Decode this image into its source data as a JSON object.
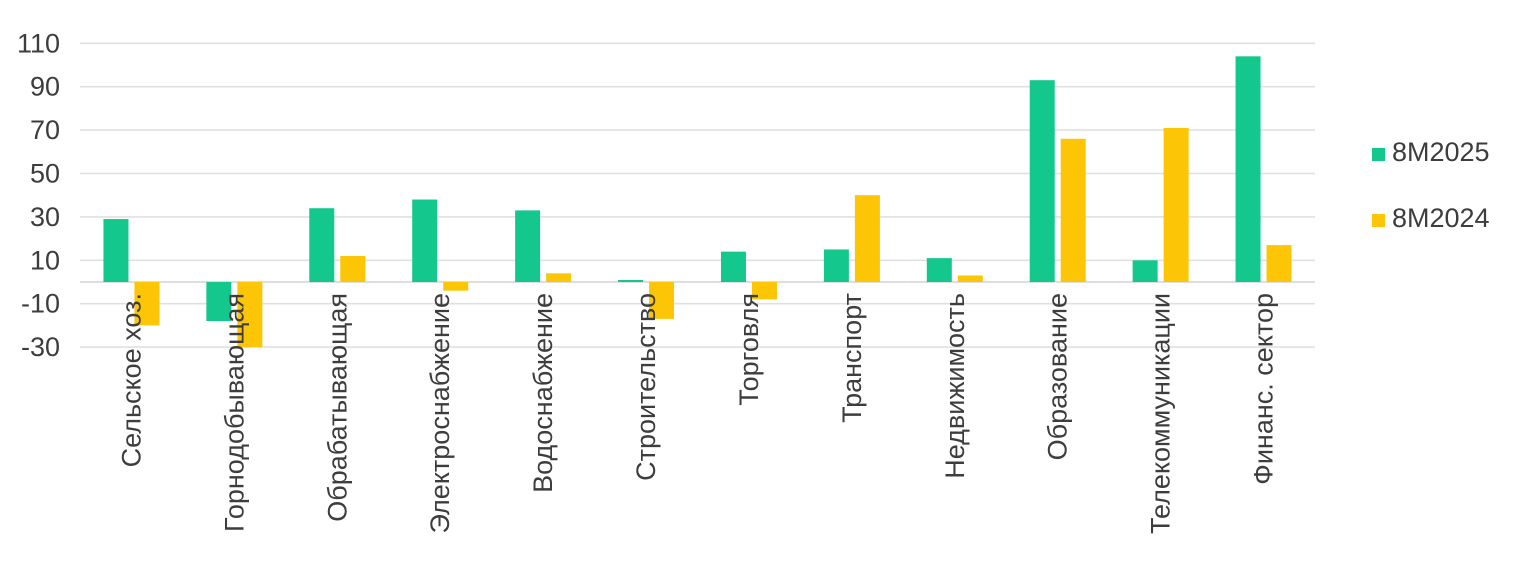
{
  "chart_data": {
    "type": "bar",
    "title": "",
    "xlabel": "",
    "ylabel": "",
    "categories": [
      "Сельское хоз.",
      "Горнодобывающая",
      "Обрабатывающая",
      "Электроснабжение",
      "Водоснабжение",
      "Строительство",
      "Торговля",
      "Транспорт",
      "Недвижимость",
      "Образование",
      "Телекоммуникации",
      "Финанс. сектор"
    ],
    "series": [
      {
        "name": "8M2025",
        "color": "#14C78C",
        "values": [
          29,
          -18,
          34,
          38,
          33,
          0,
          14,
          15,
          11,
          93,
          10,
          104
        ]
      },
      {
        "name": "8M2024",
        "color": "#FCC506",
        "values": [
          -20,
          -30,
          12,
          -4,
          4,
          -17,
          -8,
          40,
          3,
          66,
          71,
          17
        ]
      }
    ],
    "ylim": [
      -30,
      110
    ],
    "yticks": [
      110,
      90,
      70,
      50,
      30,
      10,
      -10,
      -30
    ],
    "grid": true,
    "legend_position": "right",
    "category_labels_rotated_degrees": -90
  },
  "colors": {
    "background": "#ffffff",
    "gridline": "#e0e0e0",
    "zero_line": "#d4d4d4",
    "axis_text": "#3d3d3d"
  }
}
